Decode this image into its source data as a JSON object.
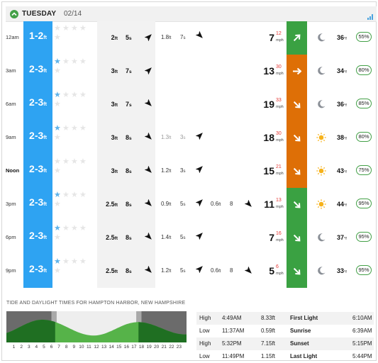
{
  "header": {
    "day": "TUESDAY",
    "date": "02/14"
  },
  "rows": [
    {
      "time": "12am",
      "time_bold": false,
      "surf": "1-2",
      "surf_unit": "ft",
      "stars_on": 0,
      "swell1": {
        "h": "2",
        "hu": "ft",
        "p": "5",
        "pu": "s",
        "dir": "sw-arrow-icon"
      },
      "swell2": {
        "h": "1.8",
        "hu": "ft",
        "p": "7",
        "pu": "s",
        "dir": "nw-arrow-icon",
        "faded": false
      },
      "swell3": null,
      "wind": {
        "speed": "7",
        "gust": "12",
        "unit": "mph",
        "color": "#3aa142",
        "dir": "ne-arrow-icon"
      },
      "weather": "moon-icon",
      "temp": "36",
      "temp_unit": "°f",
      "prob": "55%"
    },
    {
      "time": "3am",
      "time_bold": false,
      "surf": "2-3",
      "surf_unit": "ft",
      "stars_on": 1,
      "swell1": {
        "h": "3",
        "hu": "ft",
        "p": "7",
        "pu": "s",
        "dir": "sw-arrow-icon"
      },
      "swell2": null,
      "swell3": null,
      "wind": {
        "speed": "13",
        "gust": "30",
        "unit": "mph",
        "color": "#de6f06",
        "dir": "e-arrow-icon"
      },
      "weather": "moon-icon",
      "temp": "34",
      "temp_unit": "°f",
      "prob": "80%"
    },
    {
      "time": "6am",
      "time_bold": false,
      "surf": "2-3",
      "surf_unit": "ft",
      "stars_on": 1,
      "swell1": {
        "h": "3",
        "hu": "ft",
        "p": "7",
        "pu": "s",
        "dir": "nw-arrow-icon"
      },
      "swell2": null,
      "swell3": null,
      "wind": {
        "speed": "19",
        "gust": "33",
        "unit": "mph",
        "color": "#de6f06",
        "dir": "se-arrow-icon"
      },
      "weather": "moon-icon",
      "temp": "36",
      "temp_unit": "°f",
      "prob": "85%"
    },
    {
      "time": "9am",
      "time_bold": false,
      "surf": "2-3",
      "surf_unit": "ft",
      "stars_on": 1,
      "swell1": {
        "h": "3",
        "hu": "ft",
        "p": "8",
        "pu": "s",
        "dir": "nw-arrow-icon"
      },
      "swell2": {
        "h": "1.3",
        "hu": "ft",
        "p": "3",
        "pu": "s",
        "dir": "sw-arrow-icon",
        "faded": true
      },
      "swell3": null,
      "wind": {
        "speed": "18",
        "gust": "30",
        "unit": "mph",
        "color": "#de6f06",
        "dir": "se-arrow-icon"
      },
      "weather": "sun-icon",
      "temp": "38",
      "temp_unit": "°f",
      "prob": "80%"
    },
    {
      "time": "Noon",
      "time_bold": true,
      "surf": "2-3",
      "surf_unit": "ft",
      "stars_on": 0,
      "swell1": {
        "h": "3",
        "hu": "ft",
        "p": "8",
        "pu": "s",
        "dir": "nw-arrow-icon"
      },
      "swell2": {
        "h": "1.2",
        "hu": "ft",
        "p": "3",
        "pu": "s",
        "dir": "sw-arrow-icon",
        "faded": false
      },
      "swell3": null,
      "wind": {
        "speed": "15",
        "gust": "21",
        "unit": "mph",
        "color": "#de6f06",
        "dir": "se-arrow-icon"
      },
      "weather": "sun-icon",
      "temp": "43",
      "temp_unit": "°f",
      "prob": "75%"
    },
    {
      "time": "3pm",
      "time_bold": false,
      "surf": "2-3",
      "surf_unit": "ft",
      "stars_on": 1,
      "swell1": {
        "h": "2.5",
        "hu": "ft",
        "p": "8",
        "pu": "s",
        "dir": "nw-arrow-icon"
      },
      "swell2": {
        "h": "0.9",
        "hu": "ft",
        "p": "5",
        "pu": "s",
        "dir": "sw-arrow-icon",
        "faded": false
      },
      "swell3": {
        "h": "0.6",
        "hu": "ft",
        "p": "8",
        "pu": "s",
        "dir": "nw-arrow-icon"
      },
      "wind": {
        "speed": "11",
        "gust": "13",
        "unit": "mph",
        "color": "#3aa142",
        "dir": "se-arrow-icon"
      },
      "weather": "sun-icon",
      "temp": "44",
      "temp_unit": "°f",
      "prob": "95%"
    },
    {
      "time": "6pm",
      "time_bold": false,
      "surf": "2-3",
      "surf_unit": "ft",
      "stars_on": 1,
      "swell1": {
        "h": "2.5",
        "hu": "ft",
        "p": "8",
        "pu": "s",
        "dir": "nw-arrow-icon"
      },
      "swell2": {
        "h": "1.4",
        "hu": "ft",
        "p": "5",
        "pu": "s",
        "dir": "sw-arrow-icon",
        "faded": false
      },
      "swell3": null,
      "wind": {
        "speed": "7",
        "gust": "16",
        "unit": "mph",
        "color": "#3aa142",
        "dir": "se-arrow-icon"
      },
      "weather": "moon-icon",
      "temp": "37",
      "temp_unit": "°f",
      "prob": "95%"
    },
    {
      "time": "9pm",
      "time_bold": false,
      "surf": "2-3",
      "surf_unit": "ft",
      "stars_on": 1,
      "swell1": {
        "h": "2.5",
        "hu": "ft",
        "p": "8",
        "pu": "s",
        "dir": "nw-arrow-icon"
      },
      "swell2": {
        "h": "1.2",
        "hu": "ft",
        "p": "5",
        "pu": "s",
        "dir": "sw-arrow-icon",
        "faded": false
      },
      "swell3": {
        "h": "0.6",
        "hu": "ft",
        "p": "8",
        "pu": "s",
        "dir": "nw-arrow-icon"
      },
      "wind": {
        "speed": "5",
        "gust": "6",
        "unit": "mph",
        "color": "#3aa142",
        "dir": "se-arrow-icon"
      },
      "weather": "moon-icon",
      "temp": "33",
      "temp_unit": "°f",
      "prob": "95%"
    }
  ],
  "tide": {
    "title": "TIDE AND DAYLIGHT TIMES FOR HAMPTON HARBOR, NEW HAMPSHIRE",
    "hours": [
      "1",
      "2",
      "3",
      "4",
      "5",
      "6",
      "7",
      "8",
      "9",
      "10",
      "11",
      "12",
      "13",
      "14",
      "15",
      "16",
      "17",
      "18",
      "19",
      "20",
      "21",
      "22",
      "23"
    ],
    "table": [
      {
        "type": "High",
        "time": "4:49AM",
        "height": "8.33ft",
        "label": "First Light",
        "value": "6:10AM"
      },
      {
        "type": "Low",
        "time": "11:37AM",
        "height": "0.59ft",
        "label": "Sunrise",
        "value": "6:39AM"
      },
      {
        "type": "High",
        "time": "5:32PM",
        "height": "7.15ft",
        "label": "Sunset",
        "value": "5:15PM"
      },
      {
        "type": "Low",
        "time": "11:49PM",
        "height": "1.15ft",
        "label": "Last Light",
        "value": "5:44PM"
      }
    ],
    "colors": {
      "light": "#56b349",
      "dark": "#1f6f22",
      "night": "#6b6b6b",
      "day": "#eeeeee"
    }
  }
}
